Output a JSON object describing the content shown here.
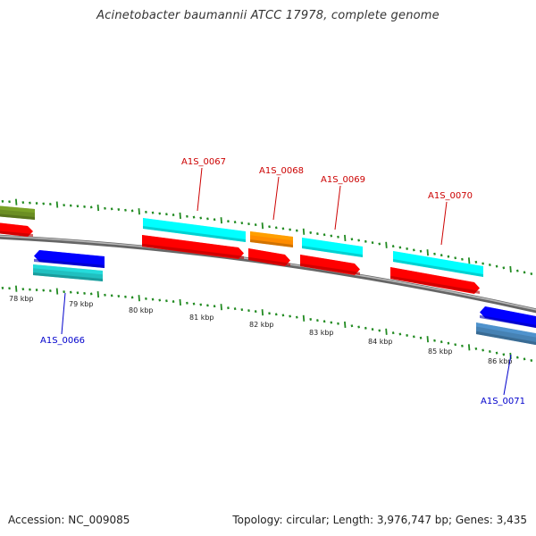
{
  "title": "Acinetobacter baumannii ATCC 17978, complete genome",
  "footer": {
    "accession": "Accession: NC_009085",
    "summary": "Topology: circular; Length: 3,976,747 bp; Genes: 3,435"
  },
  "colors": {
    "backbone": "#777777",
    "tick": "#228B22",
    "forward_label": "#cc0000",
    "reverse_label": "#0000cc",
    "cds_red": "#ff0000",
    "cds_cyan": "#00ffff",
    "cds_orange": "#ff8c00",
    "cds_blue": "#0000ff",
    "cds_teal": "#20c0c0",
    "cds_steel": "#4682b4",
    "cds_olive": "#6b8e23"
  },
  "ruler": {
    "labels": [
      "78 kbp",
      "79 kbp",
      "80 kbp",
      "81 kbp",
      "82 kbp",
      "83 kbp",
      "84 kbp",
      "85 kbp",
      "86 kbp"
    ]
  },
  "gene_labels": [
    {
      "id": "A1S_0066",
      "strand": "reverse"
    },
    {
      "id": "A1S_0067",
      "strand": "forward"
    },
    {
      "id": "A1S_0068",
      "strand": "forward"
    },
    {
      "id": "A1S_0069",
      "strand": "forward"
    },
    {
      "id": "A1S_0070",
      "strand": "forward"
    },
    {
      "id": "A1S_0071",
      "strand": "reverse"
    }
  ]
}
